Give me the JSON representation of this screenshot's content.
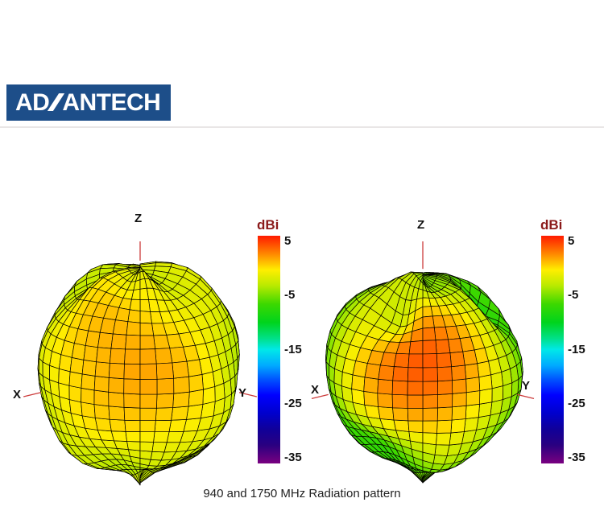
{
  "style": {
    "page_bg": "#ffffff",
    "logo_bg": "#1d4e89",
    "logo_fg": "#ffffff",
    "rule_color": "#e9e6e6",
    "axis_color": "#cc3b3b",
    "axis_label_color": "#111111",
    "dbi_color": "#8b1a1a",
    "tick_color": "#111111",
    "caption_color": "#222222",
    "mesh_line": "#000000"
  },
  "header": {
    "logo_left": "AD",
    "logo_right": "ANTECH"
  },
  "figure": {
    "caption": "940 and 1750 MHz Radiation pattern"
  },
  "colormap": {
    "stops": [
      [
        0,
        "#ff1a00"
      ],
      [
        0.08,
        "#ff8800"
      ],
      [
        0.15,
        "#ffee00"
      ],
      [
        0.22,
        "#b8ea00"
      ],
      [
        0.3,
        "#3cd800"
      ],
      [
        0.38,
        "#00d41c"
      ],
      [
        0.45,
        "#00e086"
      ],
      [
        0.5,
        "#00e8e8"
      ],
      [
        0.57,
        "#00aaff"
      ],
      [
        0.63,
        "#0055ff"
      ],
      [
        0.7,
        "#0000ff"
      ],
      [
        0.78,
        "#0000cc"
      ],
      [
        0.85,
        "#100099"
      ],
      [
        0.92,
        "#2a0080"
      ],
      [
        1,
        "#7a0080"
      ]
    ]
  },
  "chart_data": [
    {
      "type": "surface3d",
      "name": "radiation-pattern-940mhz",
      "frequency_mhz": 940,
      "axes": {
        "x": "X",
        "y": "Y",
        "z": "Z"
      },
      "colorbar": {
        "title": "dBi",
        "ticks": [
          5,
          -5,
          -15,
          -25,
          -35
        ],
        "range": [
          5.5,
          -35.5
        ]
      },
      "gain_range_dbi": [
        -6,
        3
      ]
    },
    {
      "type": "surface3d",
      "name": "radiation-pattern-1750mhz",
      "frequency_mhz": 1750,
      "axes": {
        "x": "X",
        "y": "Y",
        "z": "Z"
      },
      "colorbar": {
        "title": "dBi",
        "ticks": [
          5,
          -5,
          -15,
          -25,
          -35
        ],
        "range": [
          5.5,
          -35.5
        ]
      },
      "gain_range_dbi": [
        -9,
        5
      ]
    }
  ]
}
